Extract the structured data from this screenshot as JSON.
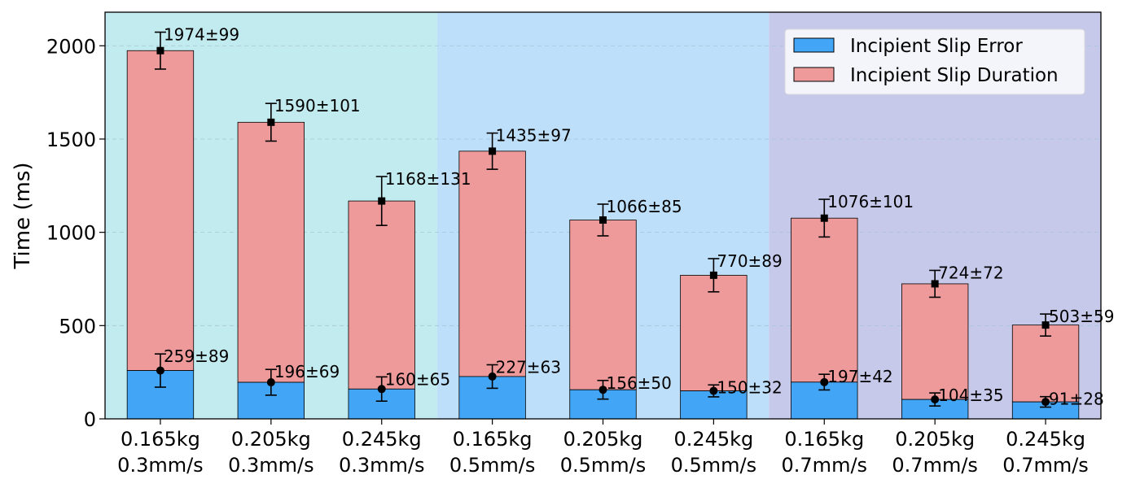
{
  "chart_data": {
    "type": "bar",
    "stacked": true,
    "ylabel": "Time (ms)",
    "ylim": [
      0,
      2180
    ],
    "yticks": [
      0,
      500,
      1000,
      1500,
      2000
    ],
    "grid": "horizontal dashed",
    "legend_position": "top-right",
    "categories": [
      [
        "0.165kg",
        "0.3mm/s"
      ],
      [
        "0.205kg",
        "0.3mm/s"
      ],
      [
        "0.245kg",
        "0.3mm/s"
      ],
      [
        "0.165kg",
        "0.5mm/s"
      ],
      [
        "0.205kg",
        "0.5mm/s"
      ],
      [
        "0.245kg",
        "0.5mm/s"
      ],
      [
        "0.165kg",
        "0.7mm/s"
      ],
      [
        "0.205kg",
        "0.7mm/s"
      ],
      [
        "0.245kg",
        "0.7mm/s"
      ]
    ],
    "background_groups": [
      {
        "start": 0,
        "end": 3,
        "color": "#c2ebef"
      },
      {
        "start": 3,
        "end": 6,
        "color": "#bddff9"
      },
      {
        "start": 6,
        "end": 9,
        "color": "#c6c9ea"
      }
    ],
    "series": [
      {
        "name": "Incipient Slip Error",
        "color": "#42a5f5",
        "marker": "circle",
        "values": [
          259,
          196,
          160,
          227,
          156,
          150,
          197,
          104,
          91
        ],
        "errors": [
          89,
          69,
          65,
          63,
          50,
          32,
          42,
          35,
          28
        ],
        "labels": [
          "259±89",
          "196±69",
          "160±65",
          "227±63",
          "156±50",
          "150±32",
          "197±42",
          "104±35",
          "91±28"
        ]
      },
      {
        "name": "Incipient Slip Duration",
        "color": "#ef9a9a",
        "marker": "square",
        "values": [
          1974,
          1590,
          1168,
          1435,
          1066,
          770,
          1076,
          724,
          503
        ],
        "errors": [
          99,
          101,
          131,
          97,
          85,
          89,
          101,
          72,
          59
        ],
        "labels": [
          "1974±99",
          "1590±101",
          "1168±131",
          "1435±97",
          "1066±85",
          "770±89",
          "1076±101",
          "724±72",
          "503±59"
        ]
      }
    ]
  }
}
